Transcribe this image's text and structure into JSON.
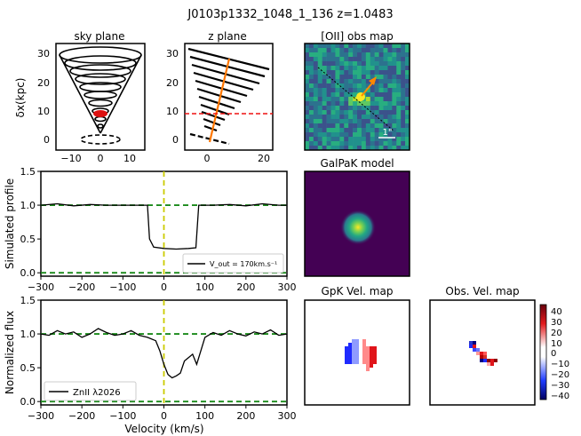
{
  "figure": {
    "title": "J0103p1332_1048_1_136 z=1.0483"
  },
  "panels": {
    "sky": {
      "title": "sky plane",
      "ylabel": "δx(kpc)",
      "xticks": [
        "−10",
        "0",
        "10"
      ],
      "yticks": [
        "0",
        "10",
        "20",
        "30"
      ]
    },
    "zplane": {
      "title": "z plane",
      "xticks": [
        "0",
        "20"
      ],
      "yticks": [
        "0",
        "10",
        "20",
        "30"
      ]
    },
    "oii": {
      "title": "[OII] obs map",
      "scale_label": "1\""
    },
    "galpak": {
      "title": "GalPaK model"
    },
    "gpk_vel": {
      "title": "GpK Vel. map"
    },
    "obs_vel": {
      "title": "Obs. Vel. map"
    },
    "colorbar": {
      "ticks": [
        "40",
        "30",
        "20",
        "10",
        "0",
        "−10",
        "−20",
        "−30",
        "−40"
      ]
    }
  },
  "chart_data": [
    {
      "type": "line",
      "id": "simulated-profile",
      "ylabel": "Simulated profile",
      "xlim": [
        -300,
        300
      ],
      "ylim": [
        -0.05,
        1.5
      ],
      "xticks": [
        "−300",
        "−200",
        "−100",
        "0",
        "100",
        "200",
        "300"
      ],
      "yticks": [
        "0.0",
        "0.5",
        "1.0",
        "1.5"
      ],
      "legend": {
        "label": "V_out = 170km.s⁻¹",
        "placement": "lower-right"
      },
      "reference_lines": {
        "vertical_x": 0,
        "horizontal_y": [
          1.0,
          0.0
        ]
      },
      "series": [
        {
          "x": [
            -300,
            -260,
            -220,
            -180,
            -140,
            -100,
            -60,
            -40,
            -35,
            -25,
            0,
            30,
            60,
            78,
            85,
            120,
            160,
            200,
            240,
            280,
            300
          ],
          "values": [
            1.0,
            1.02,
            0.99,
            1.01,
            1.0,
            1.0,
            1.0,
            1.0,
            0.5,
            0.38,
            0.36,
            0.35,
            0.36,
            0.37,
            1.0,
            1.0,
            1.01,
            0.99,
            1.02,
            1.0,
            1.0
          ]
        }
      ]
    },
    {
      "type": "line",
      "id": "normalized-flux",
      "ylabel": "Normalized flux",
      "xlabel": "Velocity (km/s)",
      "xlim": [
        -300,
        300
      ],
      "ylim": [
        -0.05,
        1.5
      ],
      "xticks": [
        "−300",
        "−200",
        "−100",
        "0",
        "100",
        "200",
        "300"
      ],
      "yticks": [
        "0.0",
        "0.5",
        "1.0",
        "1.5"
      ],
      "legend": {
        "label": "ZnII λ2026",
        "placement": "lower-left"
      },
      "reference_lines": {
        "vertical_x": 0,
        "horizontal_y": [
          1.0,
          0.0
        ]
      },
      "series": [
        {
          "x": [
            -300,
            -280,
            -260,
            -240,
            -220,
            -200,
            -180,
            -160,
            -140,
            -120,
            -100,
            -80,
            -60,
            -40,
            -20,
            -10,
            0,
            10,
            20,
            30,
            40,
            50,
            60,
            70,
            80,
            100,
            120,
            140,
            160,
            180,
            200,
            220,
            240,
            260,
            280,
            300
          ],
          "values": [
            1.0,
            0.98,
            1.05,
            1.0,
            1.03,
            0.95,
            1.0,
            1.08,
            1.02,
            0.98,
            1.0,
            1.05,
            0.98,
            0.95,
            0.9,
            0.75,
            0.55,
            0.4,
            0.35,
            0.38,
            0.42,
            0.6,
            0.65,
            0.7,
            0.55,
            0.95,
            1.02,
            0.98,
            1.05,
            1.0,
            0.97,
            1.03,
            1.0,
            1.06,
            0.98,
            1.0
          ]
        }
      ]
    }
  ]
}
